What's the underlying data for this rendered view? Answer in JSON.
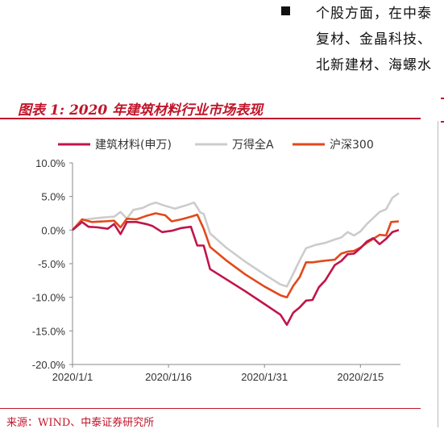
{
  "bullets": {
    "line1": "个股方面，在中泰",
    "line2": "复材、金晶科技、",
    "line3": "北新建材、海螺水"
  },
  "figure_title": "图表 1:  2020 年建筑材料行业市场表现",
  "source_text": "来源：WIND、中泰证券研究所",
  "colors": {
    "accent": "#c0152a",
    "series_building": "#c0154a",
    "series_wind_a": "#cccccc",
    "series_hs300": "#e2491b"
  },
  "chart_data": {
    "type": "line",
    "ylim": [
      -20,
      10
    ],
    "yticks": [
      10,
      5,
      0,
      -5,
      -10,
      -15,
      -20
    ],
    "ytick_labels": [
      "10.0%",
      "5.0%",
      "0.0%",
      "-5.0%",
      "-10.0%",
      "-15.0%",
      "-20.0%"
    ],
    "xlim": [
      0,
      50
    ],
    "xticks": [
      0,
      15,
      30,
      45
    ],
    "xtick_labels": [
      "2020/1/1",
      "2020/1/16",
      "2020/1/31",
      "2020/2/15"
    ],
    "series": [
      {
        "name": "建筑材料(申万)",
        "color": "#c0154a",
        "points": [
          [
            0,
            0
          ],
          [
            1.5,
            1.2
          ],
          [
            2.5,
            0.5
          ],
          [
            4,
            0.4
          ],
          [
            5.5,
            0.2
          ],
          [
            6.5,
            0.9
          ],
          [
            7.5,
            -0.6
          ],
          [
            8.5,
            1.2
          ],
          [
            10,
            1.2
          ],
          [
            11.5,
            0.9
          ],
          [
            12.5,
            0.6
          ],
          [
            14,
            -0.3
          ],
          [
            15.5,
            -0.1
          ],
          [
            17,
            0.3
          ],
          [
            18.5,
            0.5
          ],
          [
            19.5,
            -2.3
          ],
          [
            20.5,
            -2.3
          ],
          [
            21.5,
            -5.8
          ],
          [
            24,
            -7.3
          ],
          [
            27,
            -9.1
          ],
          [
            30,
            -11
          ],
          [
            32.5,
            -12.6
          ],
          [
            33.5,
            -14.1
          ],
          [
            34.5,
            -12.3
          ],
          [
            35.5,
            -11.5
          ],
          [
            36.5,
            -10.5
          ],
          [
            37.5,
            -10.4
          ],
          [
            38.5,
            -8.5
          ],
          [
            39.5,
            -7.5
          ],
          [
            41,
            -5.2
          ],
          [
            42,
            -4.6
          ],
          [
            43,
            -3.6
          ],
          [
            44,
            -3.5
          ],
          [
            45,
            -2.7
          ],
          [
            46,
            -1.7
          ],
          [
            47,
            -1.2
          ],
          [
            48,
            -2.1
          ],
          [
            49,
            -1.3
          ],
          [
            50,
            -0.3
          ],
          [
            51,
            0
          ]
        ]
      },
      {
        "name": "万得全A",
        "color": "#cccccc",
        "points": [
          [
            0,
            0
          ],
          [
            1.5,
            1.5
          ],
          [
            3,
            1.7
          ],
          [
            5,
            1.9
          ],
          [
            6.5,
            2
          ],
          [
            7.5,
            2.7
          ],
          [
            8.5,
            1.7
          ],
          [
            9.5,
            3
          ],
          [
            11,
            3.3
          ],
          [
            12,
            3.8
          ],
          [
            13,
            4.1
          ],
          [
            14.5,
            3.6
          ],
          [
            16,
            3.2
          ],
          [
            17.5,
            3.6
          ],
          [
            19,
            4.1
          ],
          [
            20,
            2.6
          ],
          [
            20.5,
            2.4
          ],
          [
            21.5,
            -0.5
          ],
          [
            24,
            -2.6
          ],
          [
            27,
            -4.7
          ],
          [
            30,
            -6.6
          ],
          [
            32.5,
            -8.1
          ],
          [
            33.5,
            -8.4
          ],
          [
            34.5,
            -6.5
          ],
          [
            35.5,
            -4.5
          ],
          [
            36.5,
            -2.7
          ],
          [
            38,
            -2.2
          ],
          [
            39.5,
            -1.9
          ],
          [
            41,
            -1.4
          ],
          [
            42,
            -1.1
          ],
          [
            43,
            -0.3
          ],
          [
            44,
            -0.8
          ],
          [
            45,
            -0.2
          ],
          [
            46,
            0.9
          ],
          [
            47,
            1.8
          ],
          [
            48,
            2.7
          ],
          [
            49,
            3.1
          ],
          [
            50,
            4.8
          ],
          [
            51,
            5.5
          ]
        ]
      },
      {
        "name": "沪深300",
        "color": "#e2491b",
        "points": [
          [
            0,
            0
          ],
          [
            1.5,
            1.6
          ],
          [
            3,
            1.2
          ],
          [
            5,
            1.3
          ],
          [
            6.5,
            1.4
          ],
          [
            7.5,
            0.4
          ],
          [
            8.5,
            1.7
          ],
          [
            10,
            1.6
          ],
          [
            11.5,
            2.1
          ],
          [
            13,
            2.5
          ],
          [
            14.5,
            2.2
          ],
          [
            15.5,
            1.3
          ],
          [
            17,
            1.6
          ],
          [
            18.5,
            2
          ],
          [
            19.5,
            2.3
          ],
          [
            20.5,
            0.2
          ],
          [
            21.5,
            -2.5
          ],
          [
            24,
            -4.5
          ],
          [
            27,
            -6.6
          ],
          [
            30,
            -8.4
          ],
          [
            32.5,
            -9.7
          ],
          [
            33.5,
            -10
          ],
          [
            34.5,
            -8.3
          ],
          [
            35.5,
            -7
          ],
          [
            36.5,
            -4.8
          ],
          [
            37.5,
            -4.8
          ],
          [
            39,
            -4.6
          ],
          [
            41,
            -4.4
          ],
          [
            42,
            -3.5
          ],
          [
            43,
            -3.2
          ],
          [
            44,
            -3.1
          ],
          [
            45,
            -2.6
          ],
          [
            46,
            -1.9
          ],
          [
            47,
            -1.3
          ],
          [
            48,
            -0.7
          ],
          [
            49,
            -0.8
          ],
          [
            49.8,
            1.2
          ],
          [
            51,
            1.3
          ]
        ]
      }
    ]
  }
}
